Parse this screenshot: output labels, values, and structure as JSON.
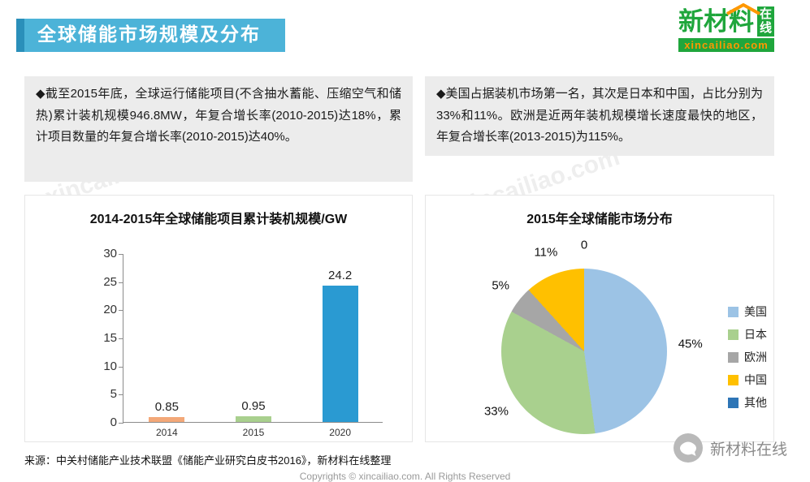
{
  "header": {
    "title": "全球储能市场规模及分布",
    "logo": {
      "brand": "新材料",
      "badge": "在线",
      "domain": "xincailiao.com"
    }
  },
  "bullets": {
    "left": "◆截至2015年底，全球运行储能项目(不含抽水蓄能、压缩空气和储热)累计装机规模946.8MW，年复合增长率(2010-2015)达18%，累计项目数量的年复合增长率(2010-2015)达40%。",
    "right": "◆美国占据装机市场第一名，其次是日本和中国，占比分别为33%和11%。欧洲是近两年装机规模增长速度最快的地区，年复合增长率(2013-2015)为115%。"
  },
  "chart_data": [
    {
      "type": "bar",
      "title": "2014-2015年全球储能项目累计装机规模/GW",
      "categories": [
        "2014",
        "2015",
        "2020"
      ],
      "values": [
        0.85,
        0.95,
        24.2
      ],
      "bar_colors": [
        "#f3a878",
        "#a9d08e",
        "#2a9ad2"
      ],
      "xlabel": "",
      "ylabel": "",
      "ylim": [
        0,
        30
      ],
      "yticks": [
        0,
        5,
        10,
        15,
        20,
        25,
        30
      ],
      "grid": false,
      "legend": "none"
    },
    {
      "type": "pie",
      "title": "2015年全球储能市场分布",
      "labels": [
        "美国",
        "日本",
        "欧洲",
        "中国",
        "其他"
      ],
      "values": [
        45,
        33,
        5,
        11,
        0
      ],
      "value_labels": [
        "45%",
        "33%",
        "5%",
        "11%",
        "0"
      ],
      "colors": [
        "#9cc3e5",
        "#a9d08e",
        "#a6a6a6",
        "#ffc000",
        "#2e75b6"
      ],
      "legend_position": "right",
      "start_angle_deg": 0,
      "direction": "clockwise"
    }
  ],
  "watermark": "xincailiao.com",
  "source": "来源：中关村储能产业技术联盟《储能产业研究白皮书2016》，新材料在线整理",
  "copyright": "Copyrights © xincailiao.com. All Rights Reserved",
  "wechat": {
    "label": "新材料在线"
  }
}
